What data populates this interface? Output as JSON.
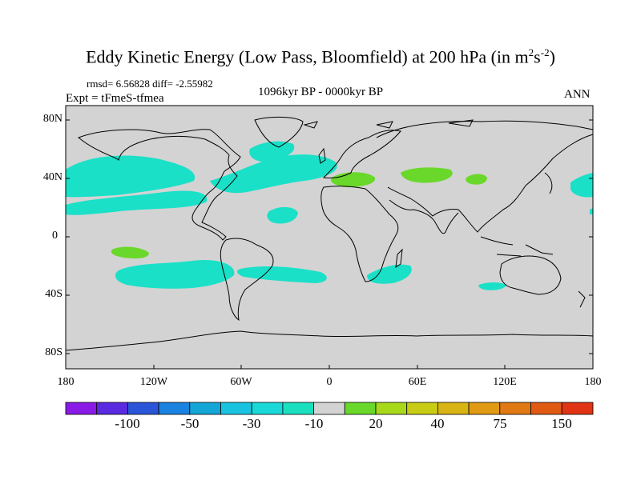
{
  "title": {
    "main": "Eddy Kinetic Energy (Low Pass, Bloomfield) at 200 hPa (in m",
    "sup1": "2",
    "mid": "s",
    "sup2": "-2",
    "end": ")"
  },
  "stats": "rmsd= 6.56828 diff= -2.55982",
  "experiment": "Expt = tFmeS-tfmea",
  "period": "1096kyr BP - 0000kyr BP",
  "season": "ANN",
  "map": {
    "projection": "cylindrical-equidistant",
    "lon_range": [
      -180,
      180
    ],
    "lat_range": [
      -90,
      90
    ],
    "lat_labels": [
      "80N",
      "40N",
      "0",
      "40S",
      "80S"
    ],
    "lon_labels": [
      "180",
      "120W",
      "60W",
      "0",
      "60E",
      "120E",
      "180"
    ],
    "background_color": "#d3d3d3"
  },
  "colorbar": {
    "colors": [
      "#8a1be6",
      "#5a2ae0",
      "#2a55d8",
      "#1a82e0",
      "#14a6d6",
      "#1ac4e0",
      "#1ad8d8",
      "#1ae0c0",
      "#d3d3d3",
      "#6ad82a",
      "#a8d81a",
      "#c8cc14",
      "#d8b414",
      "#e09a14",
      "#e07814",
      "#e05a14",
      "#e03414"
    ],
    "labels": [
      "-100",
      "-50",
      "-30",
      "-10",
      "20",
      "40",
      "75",
      "150"
    ]
  },
  "fill_colors": {
    "negative": "#1ae0c8",
    "positive": "#6ad82a"
  }
}
